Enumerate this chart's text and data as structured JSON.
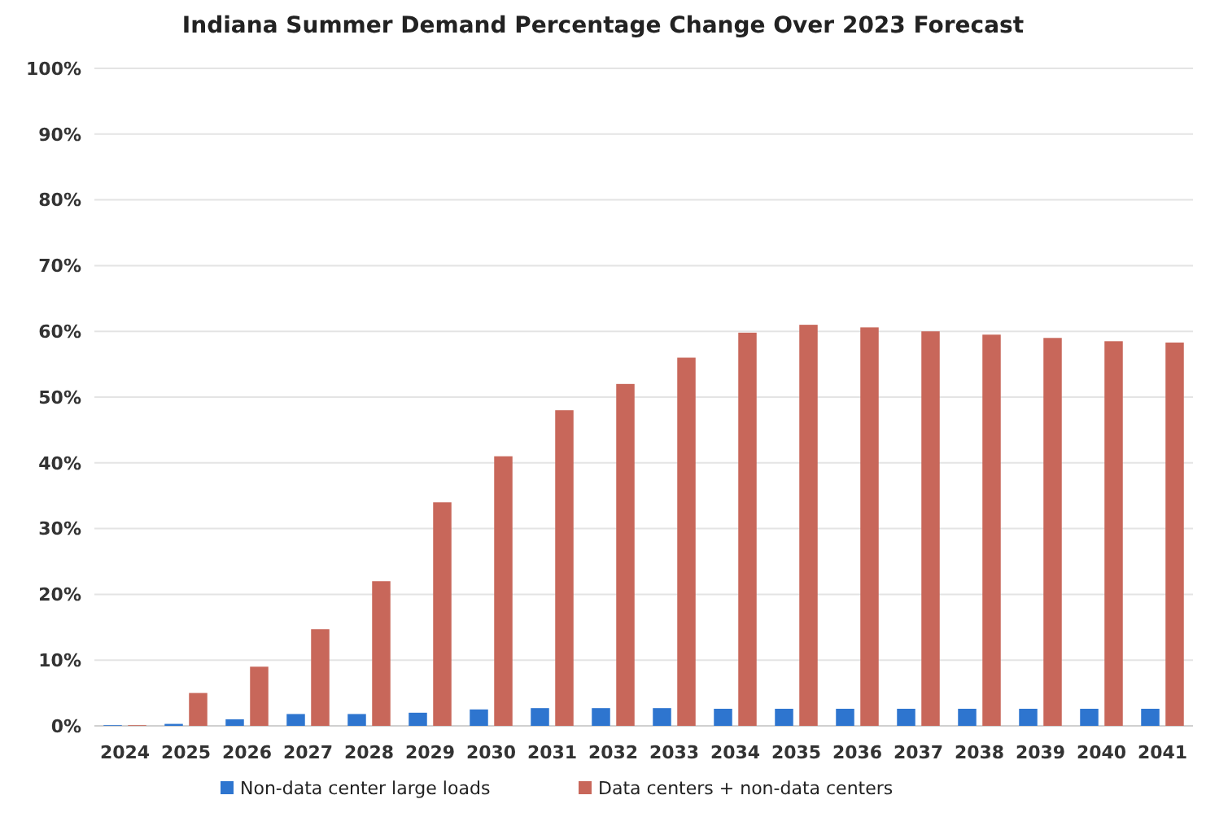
{
  "chart_data": {
    "type": "bar",
    "title": "Indiana Summer Demand Percentage Change Over 2023 Forecast",
    "categories": [
      "2024",
      "2025",
      "2026",
      "2027",
      "2028",
      "2029",
      "2030",
      "2031",
      "2032",
      "2033",
      "2034",
      "2035",
      "2036",
      "2037",
      "2038",
      "2039",
      "2040",
      "2041"
    ],
    "series": [
      {
        "name": "Non-data center large loads",
        "color": "#2e75cf",
        "values": [
          0.1,
          0.3,
          1,
          1.8,
          1.8,
          2,
          2.5,
          2.7,
          2.7,
          2.7,
          2.6,
          2.6,
          2.6,
          2.6,
          2.6,
          2.6,
          2.6,
          2.6
        ]
      },
      {
        "name": "Data centers + non-data centers",
        "color": "#c8675a",
        "values": [
          0.1,
          5,
          9,
          14.7,
          22,
          34,
          41,
          48,
          52,
          56,
          59.8,
          61,
          60.6,
          60,
          59.5,
          59,
          58.5,
          58.3
        ]
      }
    ],
    "ylim": [
      0,
      100
    ],
    "yticks": [
      {
        "value": 0,
        "label": "0%"
      },
      {
        "value": 10,
        "label": "10%"
      },
      {
        "value": 20,
        "label": "20%"
      },
      {
        "value": 30,
        "label": "30%"
      },
      {
        "value": 40,
        "label": "40%"
      },
      {
        "value": 50,
        "label": "50%"
      },
      {
        "value": 60,
        "label": "60%"
      },
      {
        "value": 70,
        "label": "70%"
      },
      {
        "value": 80,
        "label": "80%"
      },
      {
        "value": 90,
        "label": "90%"
      },
      {
        "value": 100,
        "label": "100%"
      }
    ],
    "grid": "y",
    "legend": "bottom"
  }
}
